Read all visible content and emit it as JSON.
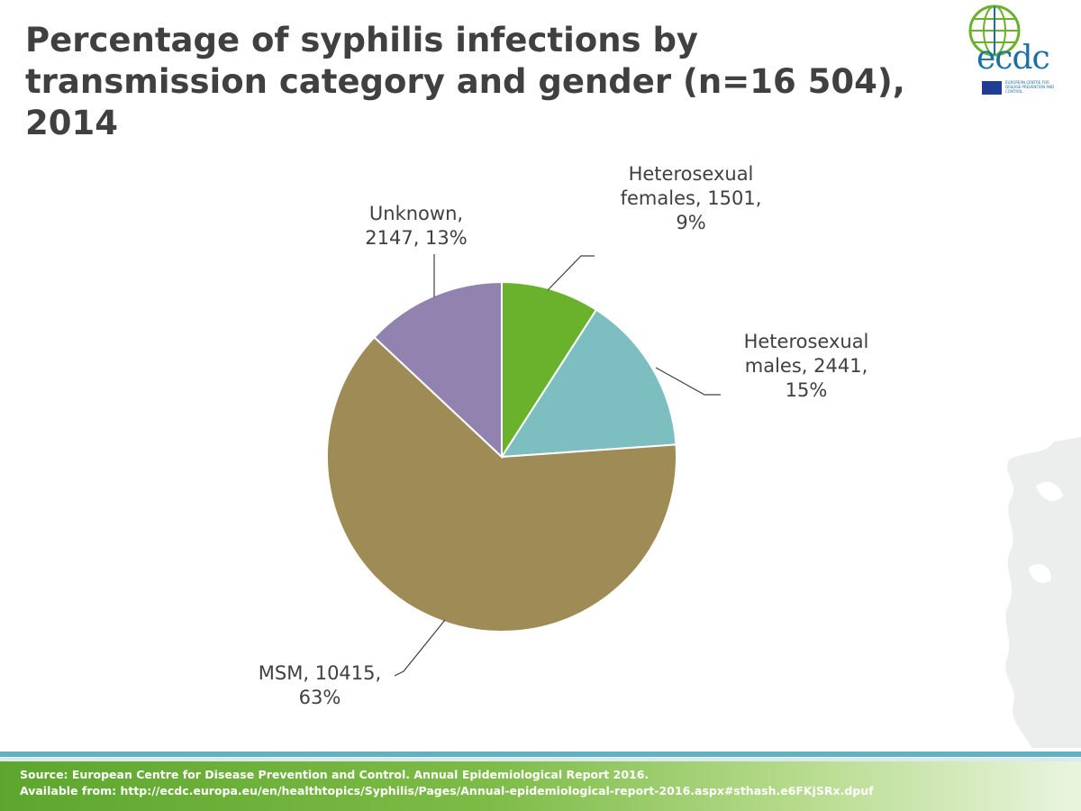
{
  "slide": {
    "title": "Percentage of syphilis infections by transmission category and gender (n=16 504), 2014",
    "logo": {
      "text": "ecdc",
      "subtitle": "EUROPEAN CENTRE FOR DISEASE PREVENTION AND CONTROL",
      "brand_color": "#1b6fa8"
    },
    "source_line1": "Source: European Centre for Disease Prevention and Control. Annual Epidemiological Report 2016.",
    "source_line2": "Available from: http://ecdc.europa.eu/en/healthtopics/Syphilis/Pages/Annual-epidemiological-report-2016.aspx#sthash.e6FKjSRx.dpuf",
    "footer_color": "#5da62e",
    "accent_line_color": "#63b0c0"
  },
  "chart_data": {
    "type": "pie",
    "title": "Percentage of syphilis infections by transmission category and gender (n=16 504), 2014",
    "start_angle_deg": 0,
    "direction": "clockwise",
    "legend": "none",
    "slices": [
      {
        "name": "Heterosexual females",
        "value": 1501,
        "percent": 9,
        "color": "#6ab12c",
        "label_lines": [
          "Heterosexual",
          "females, 1501,",
          "9%"
        ]
      },
      {
        "name": "Heterosexual males",
        "value": 2441,
        "percent": 15,
        "color": "#7dbfc1",
        "label_lines": [
          "Heterosexual",
          "males, 2441,",
          "15%"
        ]
      },
      {
        "name": "MSM",
        "value": 10415,
        "percent": 63,
        "color": "#9e8b55",
        "label_lines": [
          "MSM, 10415,",
          "63%"
        ]
      },
      {
        "name": "Unknown",
        "value": 2147,
        "percent": 13,
        "color": "#9182b0",
        "label_lines": [
          "Unknown,",
          "2147, 13%"
        ]
      }
    ]
  }
}
